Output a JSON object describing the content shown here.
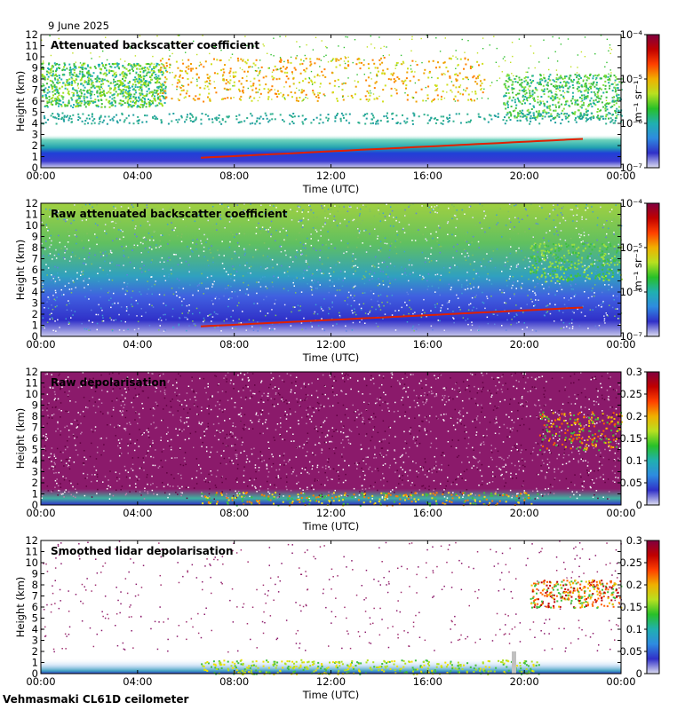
{
  "header": {
    "date": "9 June 2025"
  },
  "footer": {
    "site": "Vehmasmaki CL61D ceilometer"
  },
  "colors": {
    "background": "#ffffff",
    "colormap": [
      "#ddddf0",
      "#3030c8",
      "#2e8be0",
      "#20b0b0",
      "#28c028",
      "#b8e020",
      "#f0b000",
      "#ff4000",
      "#c00000",
      "#800040"
    ]
  },
  "chart_data": [
    {
      "type": "heatmap",
      "title": "Attenuated backscatter coefficient",
      "xlabel": "Time (UTC)",
      "ylabel": "Height (km)",
      "x_ticks": [
        "00:00",
        "04:00",
        "08:00",
        "12:00",
        "16:00",
        "20:00",
        "00:00"
      ],
      "y_ticks": [
        "0",
        "1",
        "2",
        "3",
        "4",
        "5",
        "6",
        "7",
        "8",
        "9",
        "10",
        "11",
        "12"
      ],
      "ylim": [
        0,
        12
      ],
      "colorbar": {
        "scale": "log",
        "label": "m⁻¹ sr⁻¹",
        "ticks": [
          "10⁻⁷",
          "10⁻⁶",
          "10⁻⁵",
          "10⁻⁴"
        ],
        "range": [
          1e-07,
          0.0001
        ]
      }
    },
    {
      "type": "heatmap",
      "title": "Raw attenuated backscatter coefficient",
      "xlabel": "Time (UTC)",
      "ylabel": "Height (km)",
      "x_ticks": [
        "00:00",
        "04:00",
        "08:00",
        "12:00",
        "16:00",
        "20:00",
        "00:00"
      ],
      "y_ticks": [
        "0",
        "1",
        "2",
        "3",
        "4",
        "5",
        "6",
        "7",
        "8",
        "9",
        "10",
        "11",
        "12"
      ],
      "ylim": [
        0,
        12
      ],
      "colorbar": {
        "scale": "log",
        "label": "m⁻¹ sr⁻¹",
        "ticks": [
          "10⁻⁷",
          "10⁻⁶",
          "10⁻⁵",
          "10⁻⁴"
        ],
        "range": [
          1e-07,
          0.0001
        ]
      }
    },
    {
      "type": "heatmap",
      "title": "Raw depolarisation",
      "xlabel": "Time (UTC)",
      "ylabel": "Height (km)",
      "x_ticks": [
        "00:00",
        "04:00",
        "08:00",
        "12:00",
        "16:00",
        "20:00",
        "00:00"
      ],
      "y_ticks": [
        "0",
        "1",
        "2",
        "3",
        "4",
        "5",
        "6",
        "7",
        "8",
        "9",
        "10",
        "11",
        "12"
      ],
      "ylim": [
        0,
        12
      ],
      "colorbar": {
        "scale": "linear",
        "label": "",
        "ticks": [
          "0",
          "0.05",
          "0.1",
          "0.15",
          "0.2",
          "0.25",
          "0.3"
        ],
        "range": [
          0,
          0.3
        ]
      }
    },
    {
      "type": "heatmap",
      "title": "Smoothed lidar depolarisation",
      "xlabel": "Time (UTC)",
      "ylabel": "Height (km)",
      "x_ticks": [
        "00:00",
        "04:00",
        "08:00",
        "12:00",
        "16:00",
        "20:00",
        "00:00"
      ],
      "y_ticks": [
        "0",
        "1",
        "2",
        "3",
        "4",
        "5",
        "6",
        "7",
        "8",
        "9",
        "10",
        "11",
        "12"
      ],
      "ylim": [
        0,
        12
      ],
      "colorbar": {
        "scale": "linear",
        "label": "",
        "ticks": [
          "0",
          "0.05",
          "0.1",
          "0.15",
          "0.2",
          "0.25",
          "0.3"
        ],
        "range": [
          0,
          0.3
        ]
      }
    }
  ]
}
